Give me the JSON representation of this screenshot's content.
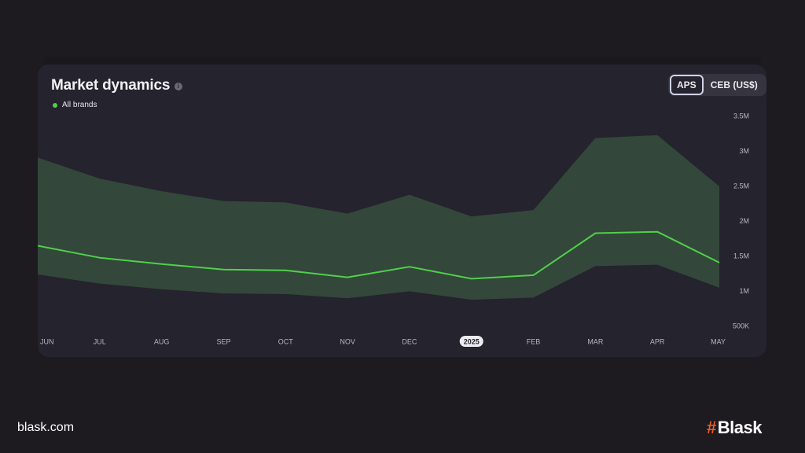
{
  "card": {
    "title": "Market dynamics",
    "info_icon": "i",
    "legend_label": "All brands",
    "toggle": [
      "APS",
      "CEB (US$)"
    ],
    "active_toggle": "APS"
  },
  "colors": {
    "line": "#4fd04a",
    "band": "#33473a",
    "background": "#25232e",
    "axis_text": "#b8b6bf",
    "logo_accent": "#f15a24"
  },
  "chart_data": {
    "type": "area",
    "categories": [
      "JUN",
      "JUL",
      "AUG",
      "SEP",
      "OCT",
      "NOV",
      "DEC",
      "2025",
      "FEB",
      "MAR",
      "APR",
      "MAY"
    ],
    "highlighted_category": "2025",
    "series": [
      {
        "name": "All brands",
        "values": [
          1640000,
          1470000,
          1380000,
          1300000,
          1290000,
          1190000,
          1340000,
          1170000,
          1220000,
          1820000,
          1840000,
          1400000
        ],
        "upper": [
          2900000,
          2600000,
          2420000,
          2280000,
          2260000,
          2100000,
          2370000,
          2060000,
          2150000,
          3180000,
          3220000,
          2490000
        ],
        "lower": [
          1230000,
          1100000,
          1020000,
          960000,
          950000,
          890000,
          990000,
          870000,
          900000,
          1350000,
          1370000,
          1040000
        ]
      }
    ],
    "y_ticks": [
      "3.5M",
      "3M",
      "2.5M",
      "2M",
      "1.5M",
      "1M",
      "500K"
    ],
    "y_tick_values": [
      3500000,
      3000000,
      2500000,
      2000000,
      1500000,
      1000000,
      500000
    ],
    "ylim": [
      500000,
      3500000
    ],
    "grid": false
  },
  "footer": {
    "site": "blask.com",
    "logo_mark": "#",
    "logo_text": "Blask"
  }
}
